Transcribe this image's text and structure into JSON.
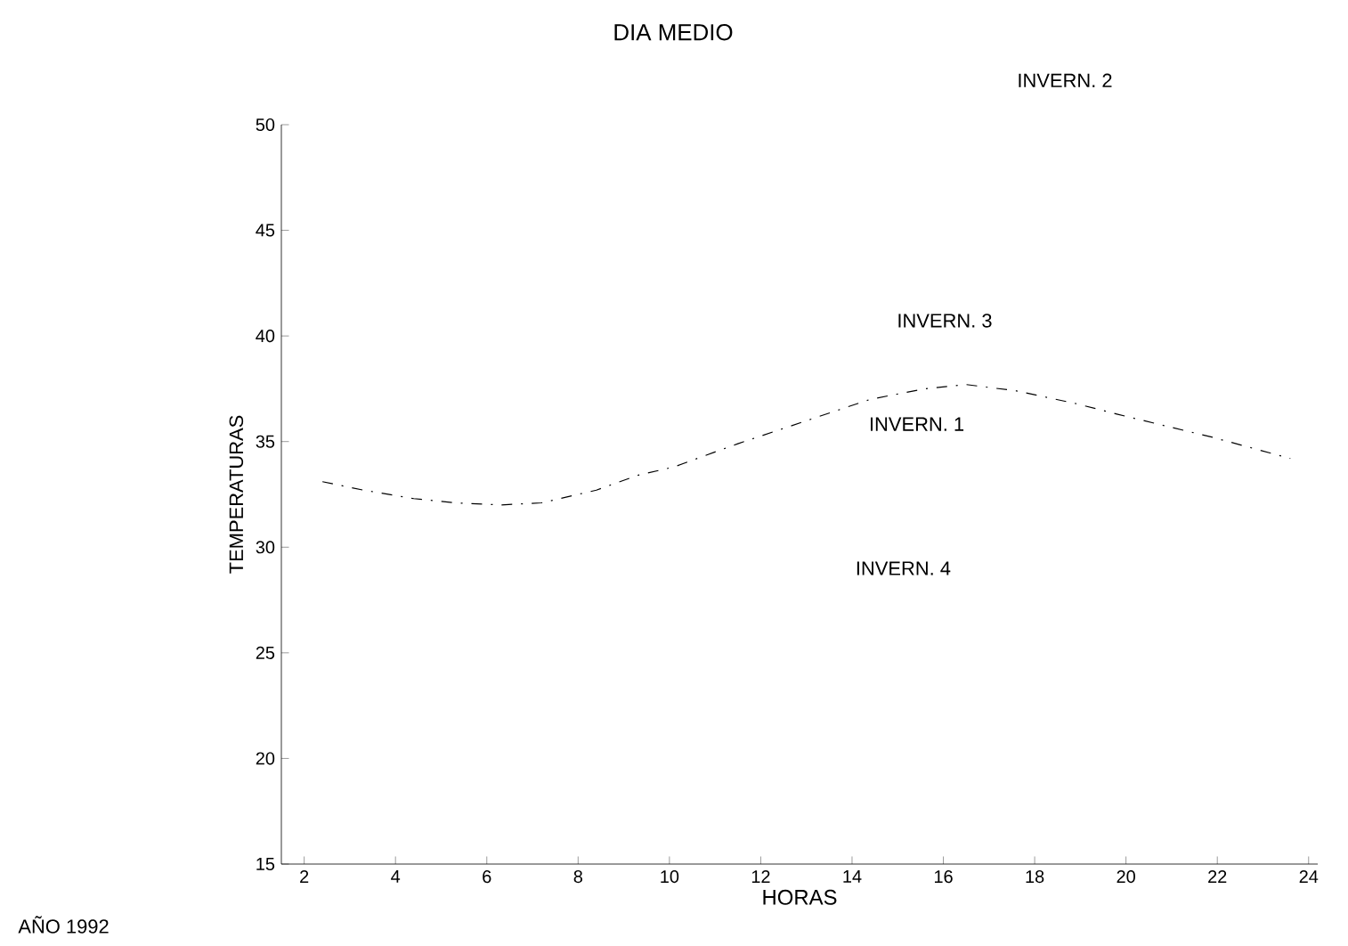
{
  "chart_data": {
    "type": "line",
    "title": "DIA MEDIO",
    "xlabel": "HORAS",
    "ylabel": "TEMPERATURAS",
    "annotations": [
      "INVERN. 2",
      "INVERN. 3",
      "INVERN. 1",
      "INVERN. 4",
      "AÑO 1992"
    ],
    "x": [
      2.4,
      3.3,
      4.4,
      5.3,
      6.3,
      7.2,
      8.4,
      9.3,
      10.1,
      11.5,
      14.4,
      15.6,
      16.5,
      17.6,
      18.9,
      19.8,
      21.9,
      23.6
    ],
    "series": [
      {
        "color": "#000000",
        "values": [
          33.1,
          32.7,
          32.3,
          32.1,
          32.0,
          32.1,
          32.7,
          33.4,
          33.8,
          34.9,
          37.0,
          37.5,
          37.7,
          37.4,
          36.8,
          36.3,
          35.2,
          34.2
        ]
      }
    ],
    "xlim": [
      1.5,
      24.2
    ],
    "ylim": [
      15,
      50
    ],
    "xticks": [
      2,
      4,
      6,
      8,
      10,
      12,
      14,
      16,
      18,
      20,
      22,
      24
    ],
    "yticks": [
      15,
      20,
      25,
      30,
      35,
      40,
      45,
      50
    ],
    "grid": false,
    "marker": "none",
    "line_style": "dashed"
  }
}
